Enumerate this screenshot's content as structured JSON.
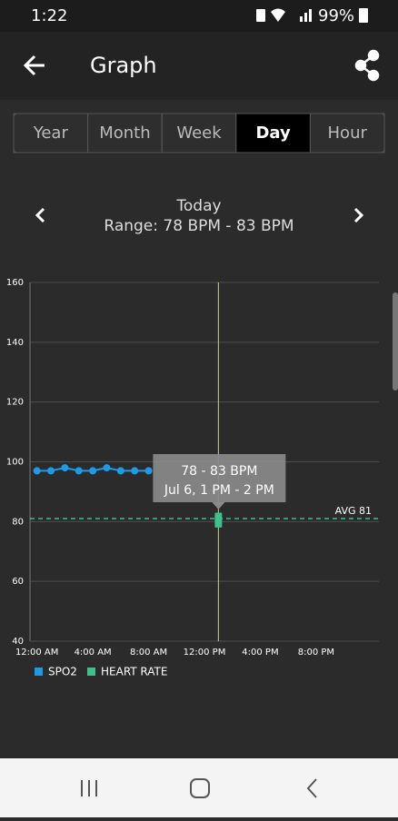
{
  "status_bar": {
    "time": "1:22",
    "battery": "99%"
  },
  "header": {
    "title": "Graph"
  },
  "tabs": {
    "items": [
      "Year",
      "Month",
      "Week",
      "Day",
      "Hour"
    ],
    "selected": 3
  },
  "navigation": {
    "period": "Today",
    "range": "Range: 78 BPM - 83 BPM"
  },
  "chart_data": {
    "type": "line",
    "ylim": [
      40,
      160
    ],
    "yticks": [
      40,
      60,
      80,
      100,
      120,
      140,
      160
    ],
    "grid": true,
    "xlim": [
      -0.5,
      24.5
    ],
    "xticks": [
      {
        "value": 0,
        "label": "12:00 AM"
      },
      {
        "value": 4,
        "label": "4:00 AM"
      },
      {
        "value": 8,
        "label": "8:00 AM"
      },
      {
        "value": 12,
        "label": "12:00 PM"
      },
      {
        "value": 16,
        "label": "4:00 PM"
      },
      {
        "value": 20,
        "label": "8:00 PM"
      }
    ],
    "series": [
      {
        "name": "SPO2",
        "color": "#1e9be8",
        "x": [
          0,
          1,
          2,
          3,
          4,
          5,
          6,
          7,
          8
        ],
        "values": [
          97,
          97,
          98,
          97,
          97,
          98,
          97,
          97,
          97
        ]
      },
      {
        "name": "HEART RATE",
        "color": "#3cc08e",
        "x": [
          13
        ],
        "low": [
          78
        ],
        "high": [
          83
        ]
      }
    ],
    "average_line": {
      "value": 81,
      "label": "AVG 81"
    },
    "cursor_x": 13,
    "tooltip": {
      "range": "78 - 83 BPM",
      "time": "Jul 6, 1 PM - 2 PM"
    }
  }
}
